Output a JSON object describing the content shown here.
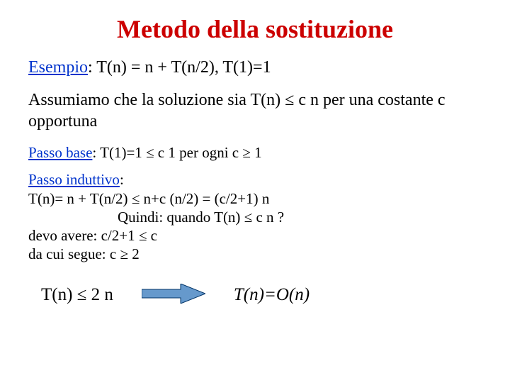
{
  "colors": {
    "title": "#cc0000",
    "label": "#0033cc",
    "body": "#000000",
    "arrow_fill": "#6699cc",
    "arrow_stroke": "#003366",
    "background": "#ffffff"
  },
  "fontsize": {
    "title": 36,
    "body_large": 24,
    "body_small": 21,
    "conclusion": 25
  },
  "title": "Metodo della sostituzione",
  "example": {
    "label": "Esempio",
    "text": ": T(n) = n + T(n/2), T(1)=1"
  },
  "assumption": "Assumiamo che la soluzione sia T(n) ≤ c n per una costante c opportuna",
  "base": {
    "label": "Passo base",
    "text": ": T(1)=1 ≤ c 1 per ogni c ≥ 1"
  },
  "inductive": {
    "label": "Passo induttivo",
    "line1": "T(n)= n + T(n/2) ≤ n+c (n/2) = (c/2+1) n",
    "line2_indent": "                        Quindi: quando T(n) ≤ c n ?",
    "line3": "devo avere: c/2+1 ≤ c",
    "line4": "da cui segue: c ≥ 2"
  },
  "conclusion": {
    "left": "T(n) ≤ 2 n",
    "right": "T(n)=O(n)"
  },
  "arrow": {
    "width": 90,
    "height": 28
  }
}
